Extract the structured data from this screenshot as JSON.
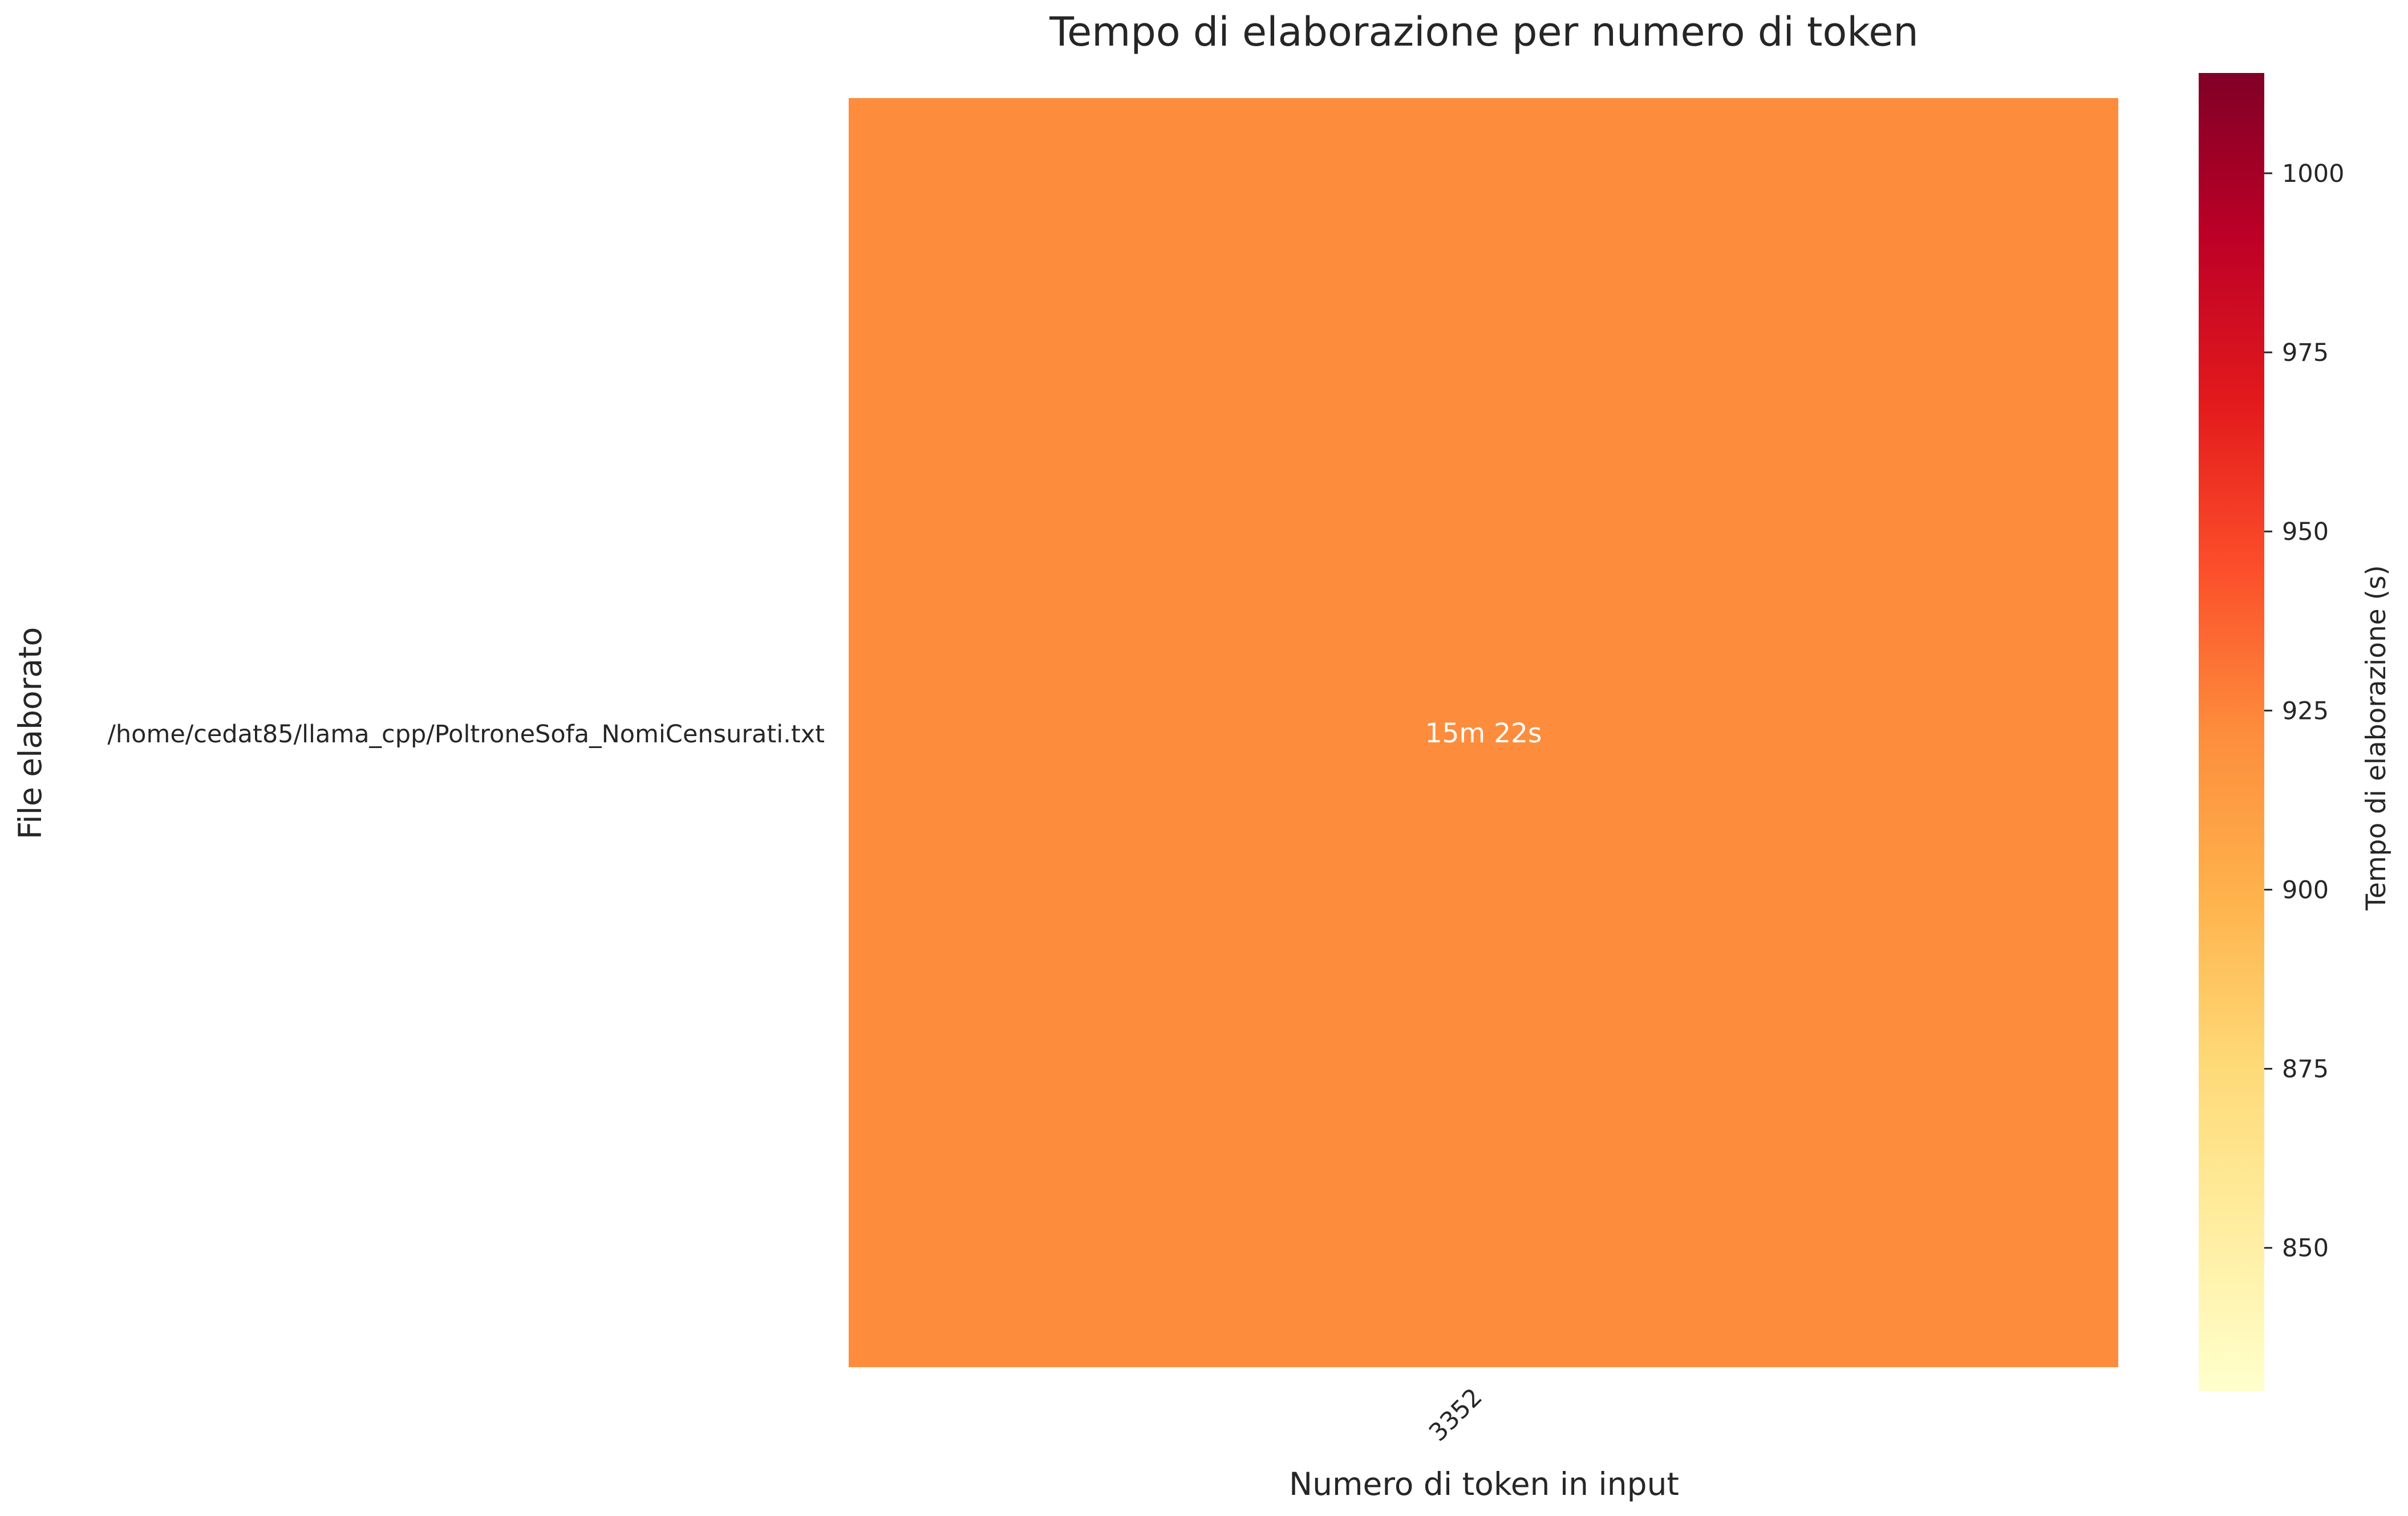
{
  "chart_data": {
    "type": "heatmap",
    "title": "Tempo di elaborazione per numero di token",
    "xlabel": "Numero di token in input",
    "ylabel": "File elaborato",
    "x_categories": [
      "3352"
    ],
    "y_categories": [
      "/home/cedat85/llama_cpp/PoltroneSofa_NomiCensurati.txt"
    ],
    "values": [
      [
        922
      ]
    ],
    "cell_labels": [
      [
        "15m 22s"
      ]
    ],
    "colorbar": {
      "label": "Tempo di elaborazione (s)",
      "range": [
        830,
        1014
      ],
      "ticks": [
        850,
        875,
        900,
        925,
        950,
        975,
        1000
      ],
      "colormap": "YlOrRd",
      "stops": [
        "#ffffcc",
        "#ffeda0",
        "#fed976",
        "#feb24c",
        "#fd8d3c",
        "#fc4e2a",
        "#e31a1c",
        "#bd0026",
        "#800026"
      ]
    },
    "grid": false
  }
}
